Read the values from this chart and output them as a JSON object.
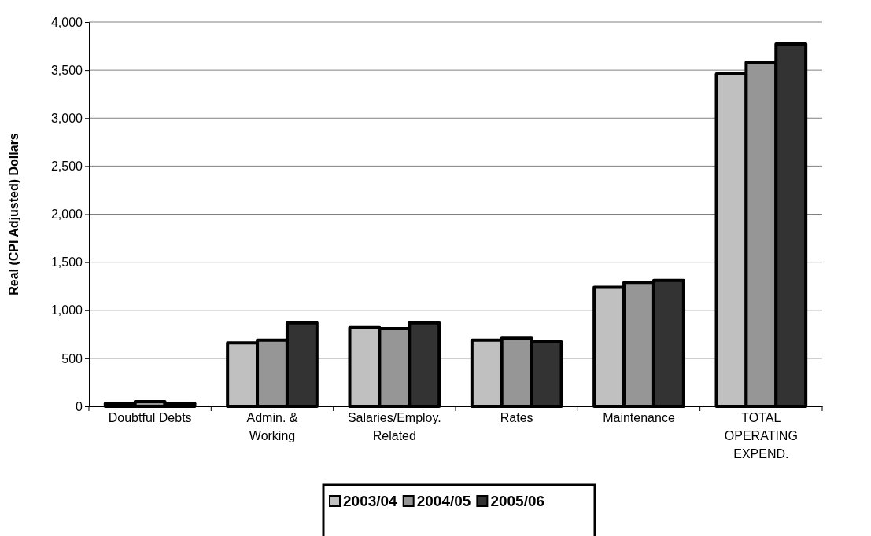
{
  "chart_data": {
    "type": "bar",
    "ylabel": "Real (CPI Adjusted) Dollars",
    "categories": [
      "Doubtful Debts",
      "Admin. & Working",
      "Salaries/Employ. Related",
      "Rates",
      "Maintenance",
      "TOTAL OPERATING EXPEND."
    ],
    "series": [
      {
        "name": "2003/04",
        "color": "#c0c0c0",
        "values": [
          30,
          660,
          820,
          690,
          1240,
          3460
        ]
      },
      {
        "name": "2004/05",
        "color": "#969696",
        "values": [
          50,
          690,
          810,
          710,
          1290,
          3580
        ]
      },
      {
        "name": "2005/06",
        "color": "#333333",
        "values": [
          30,
          870,
          870,
          670,
          1310,
          3770
        ]
      }
    ],
    "ylim": [
      0,
      4000
    ],
    "yticks": [
      {
        "value": 0,
        "label": "0"
      },
      {
        "value": 500,
        "label": "500"
      },
      {
        "value": 1000,
        "label": "1,000"
      },
      {
        "value": 1500,
        "label": "1,500"
      },
      {
        "value": 2000,
        "label": "2,000"
      },
      {
        "value": 2500,
        "label": "2,500"
      },
      {
        "value": 3000,
        "label": "3,000"
      },
      {
        "value": 3500,
        "label": "3,500"
      },
      {
        "value": 4000,
        "label": "4,000"
      }
    ],
    "grid": "y",
    "legend": "bottom"
  }
}
